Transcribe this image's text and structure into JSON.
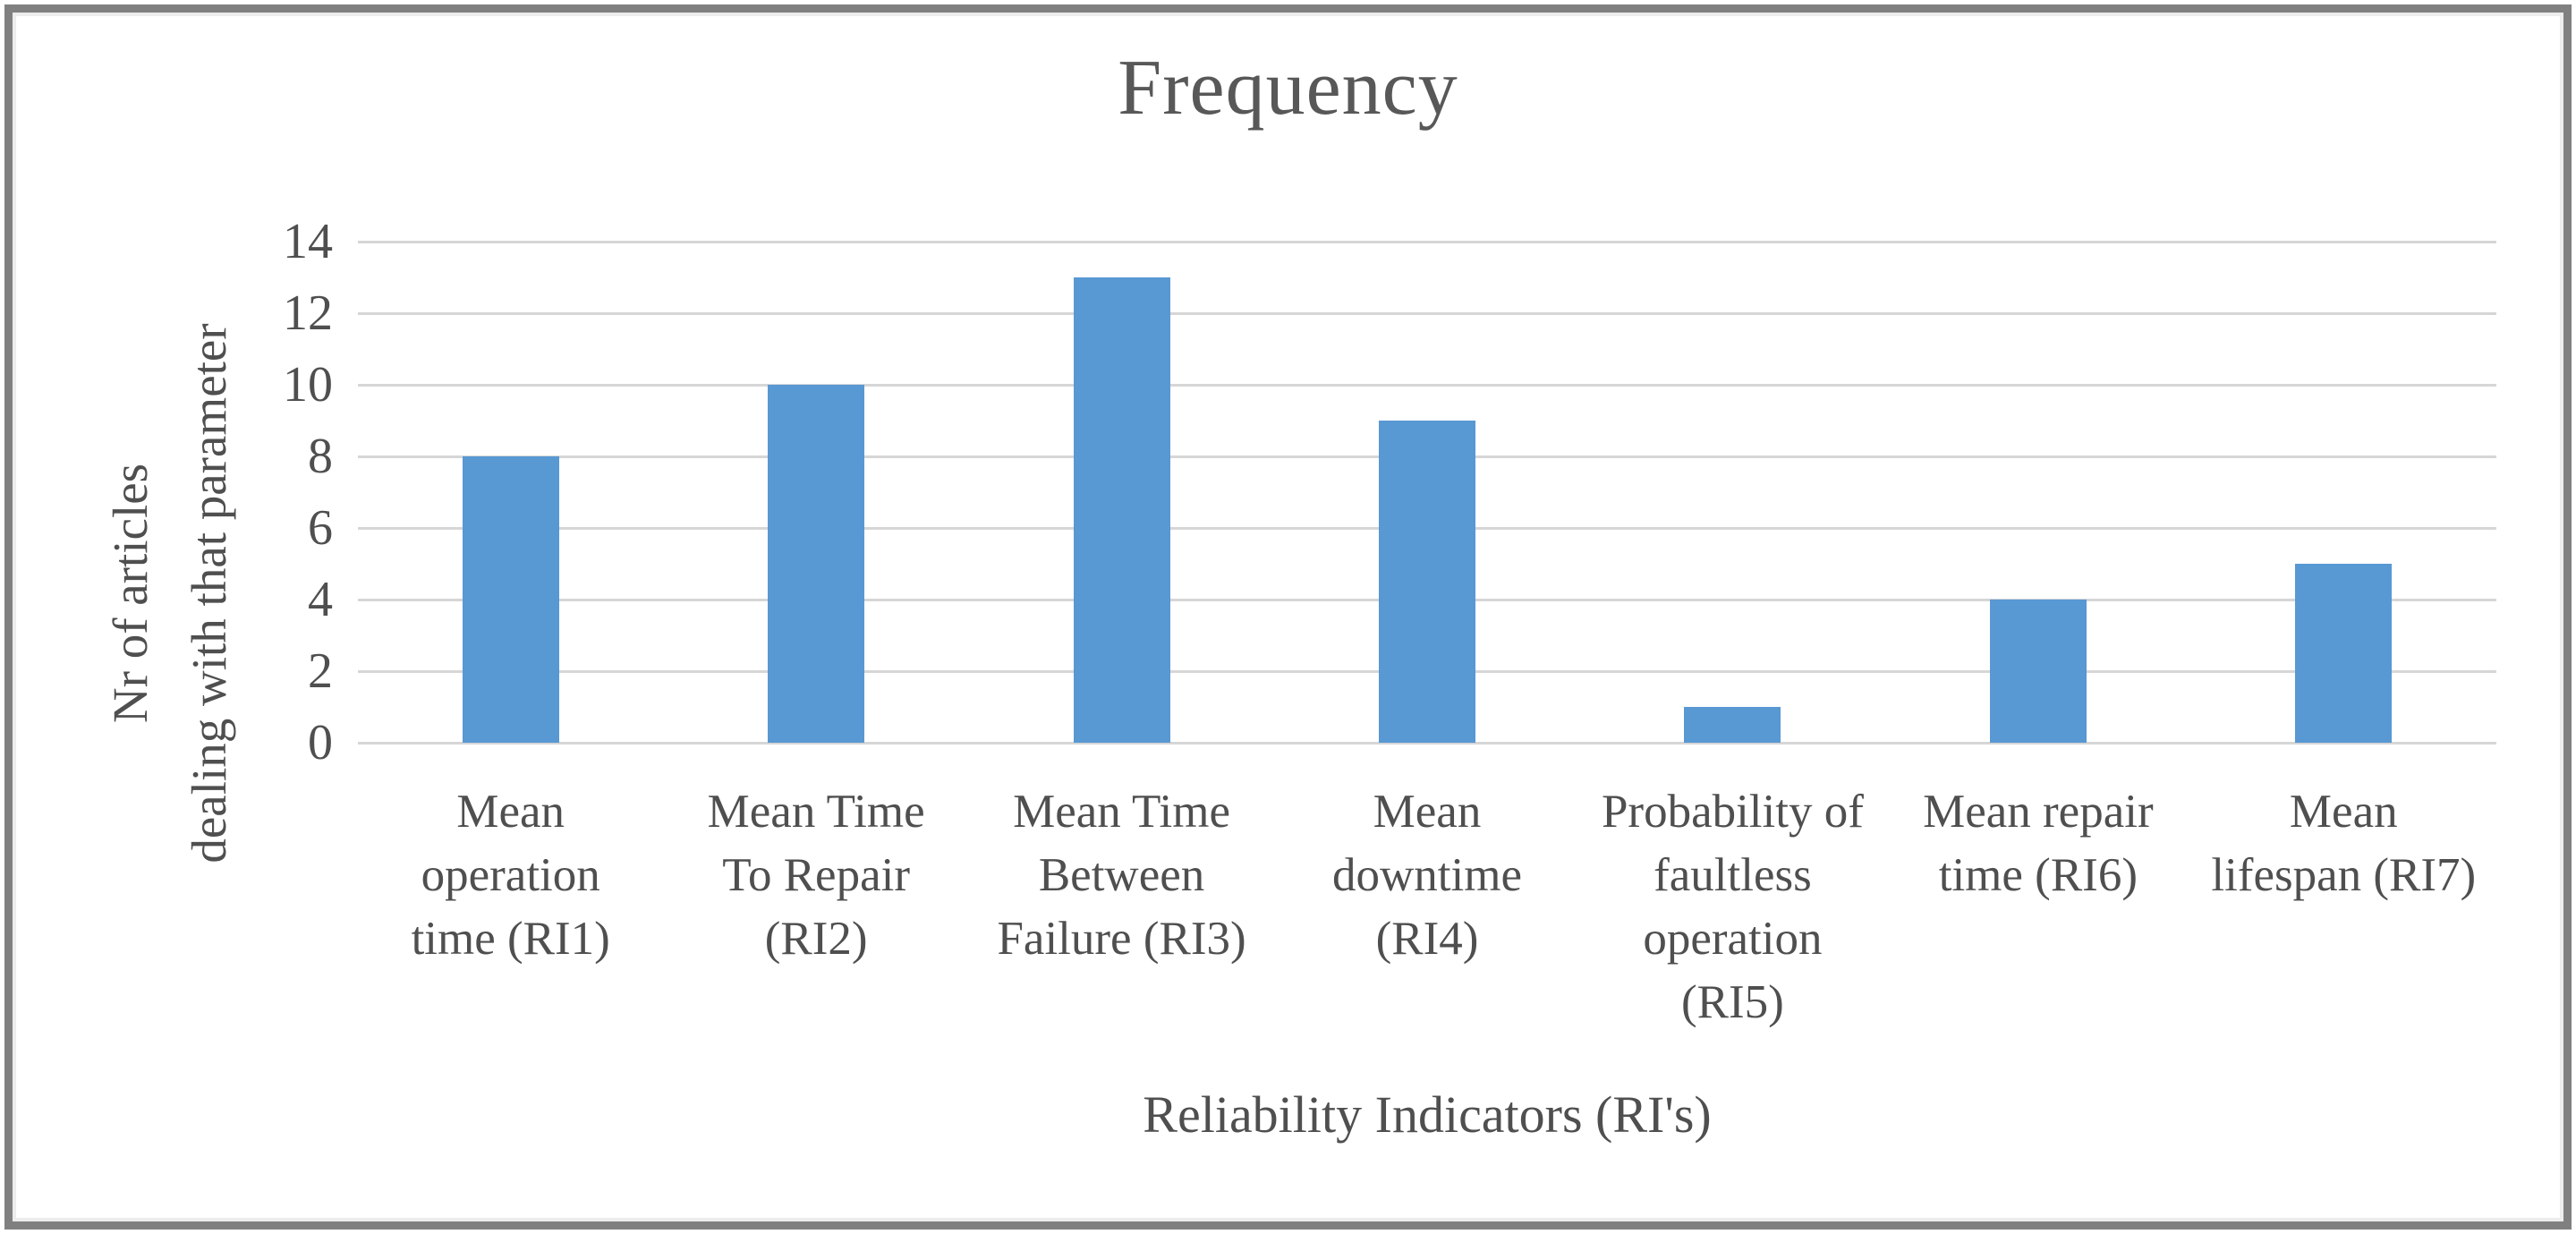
{
  "figure": {
    "border_color": "#808080",
    "background": "#ffffff"
  },
  "chart_data": {
    "type": "bar",
    "title": "Frequency",
    "xlabel": "Reliability Indicators (RI's)",
    "ylabel": "Nr of articles dealing with that parameter",
    "ylabel_lines": [
      "Nr of articles",
      "dealing with that parameter"
    ],
    "categories": [
      "Mean operation time (RI1)",
      "Mean Time To Repair (RI2)",
      "Mean Time Between Failure (RI3)",
      "Mean downtime (RI4)",
      "Probability of faultless operation (RI5)",
      "Mean repair time (RI6)",
      "Mean lifespan (RI7)"
    ],
    "category_lines": [
      [
        "Mean",
        "operation",
        "time (RI1)"
      ],
      [
        "Mean Time",
        "To Repair",
        "(RI2)"
      ],
      [
        "Mean Time",
        "Between",
        "Failure (RI3)"
      ],
      [
        "Mean",
        "downtime",
        "(RI4)"
      ],
      [
        "Probability of",
        "faultless",
        "operation",
        "(RI5)"
      ],
      [
        "Mean repair",
        "time (RI6)"
      ],
      [
        "Mean",
        "lifespan (RI7)"
      ]
    ],
    "values": [
      8,
      10,
      13,
      9,
      1,
      4,
      5
    ],
    "yticks": [
      0,
      2,
      4,
      6,
      8,
      10,
      12,
      14
    ],
    "ylim": [
      0,
      14
    ],
    "grid": true,
    "legend_position": "none",
    "bar_color": "#5898d3",
    "gridline_color": "#d6d6d6",
    "text_color": "#4f4f4f"
  }
}
